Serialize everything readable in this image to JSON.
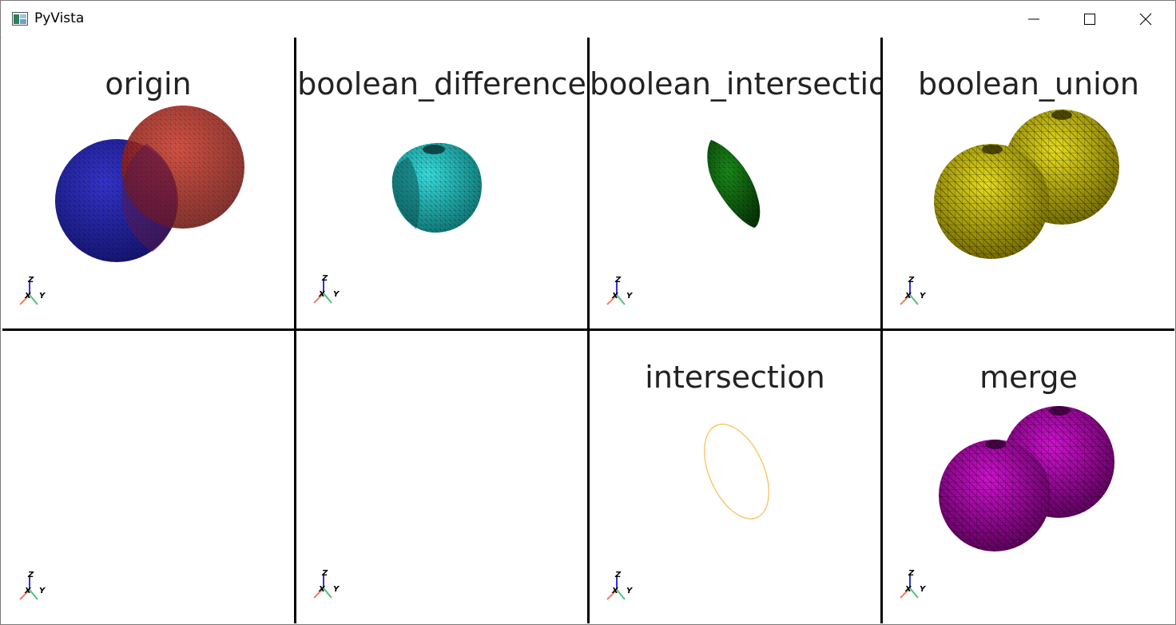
{
  "window": {
    "title": "PyVista",
    "icon": "pyvista-app-icon",
    "controls": [
      "minimize-icon",
      "maximize-icon",
      "close-icon"
    ]
  },
  "panels": [
    {
      "title": "origin"
    },
    {
      "title": "boolean_difference"
    },
    {
      "title": "boolean_intersection"
    },
    {
      "title": "boolean_union"
    },
    {
      "title": ""
    },
    {
      "title": ""
    },
    {
      "title": "intersection"
    },
    {
      "title": "merge"
    }
  ],
  "axes_labels": {
    "x": "X",
    "y": "Y",
    "z": "Z"
  },
  "colors": {
    "sphere_a": "#1f1fa8",
    "sphere_b": "#b81f1f",
    "difference": "#1fbfbf",
    "intersection_mesh": "#0f5a0f",
    "union": "#b8b000",
    "intersection_curve": "#f5c66a",
    "merge": "#9e009e",
    "axis_x": "#f08060",
    "axis_y": "#50c080",
    "axis_z": "#3030e0"
  }
}
